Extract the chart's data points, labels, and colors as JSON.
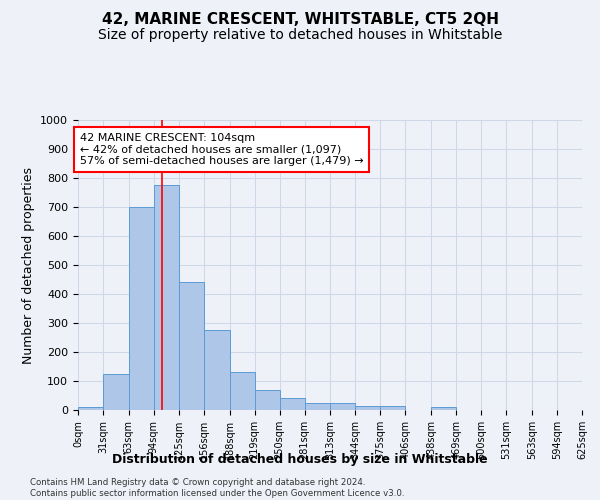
{
  "title": "42, MARINE CRESCENT, WHITSTABLE, CT5 2QH",
  "subtitle": "Size of property relative to detached houses in Whitstable",
  "xlabel": "Distribution of detached houses by size in Whitstable",
  "ylabel": "Number of detached properties",
  "footer_line1": "Contains HM Land Registry data © Crown copyright and database right 2024.",
  "footer_line2": "Contains public sector information licensed under the Open Government Licence v3.0.",
  "x_labels": [
    "0sqm",
    "31sqm",
    "63sqm",
    "94sqm",
    "125sqm",
    "156sqm",
    "188sqm",
    "219sqm",
    "250sqm",
    "281sqm",
    "313sqm",
    "344sqm",
    "375sqm",
    "406sqm",
    "438sqm",
    "469sqm",
    "500sqm",
    "531sqm",
    "563sqm",
    "594sqm",
    "625sqm"
  ],
  "bar_left_edges": [
    0,
    31,
    63,
    94,
    125,
    156,
    188,
    219,
    250,
    281,
    313,
    344,
    375,
    406,
    438,
    469,
    500,
    531,
    563,
    594
  ],
  "bar_widths": [
    31,
    32,
    31,
    31,
    31,
    32,
    31,
    31,
    31,
    32,
    31,
    31,
    31,
    32,
    31,
    31,
    31,
    32,
    31,
    31
  ],
  "bar_heights": [
    10,
    125,
    700,
    775,
    440,
    275,
    130,
    70,
    40,
    25,
    25,
    15,
    15,
    0,
    10,
    0,
    0,
    0,
    0,
    0
  ],
  "bar_color": "#aec6e8",
  "bar_edge_color": "#5b9bd5",
  "grid_color": "#d0d8e8",
  "vline_x": 104,
  "vline_color": "red",
  "annotation_line1": "42 MARINE CRESCENT: 104sqm",
  "annotation_line2": "← 42% of detached houses are smaller (1,097)",
  "annotation_line3": "57% of semi-detached houses are larger (1,479) →",
  "ylim": [
    0,
    1000
  ],
  "yticks": [
    0,
    100,
    200,
    300,
    400,
    500,
    600,
    700,
    800,
    900,
    1000
  ],
  "title_fontsize": 11,
  "subtitle_fontsize": 10,
  "xlabel_fontsize": 9,
  "ylabel_fontsize": 9,
  "bg_color": "#eef2f8"
}
